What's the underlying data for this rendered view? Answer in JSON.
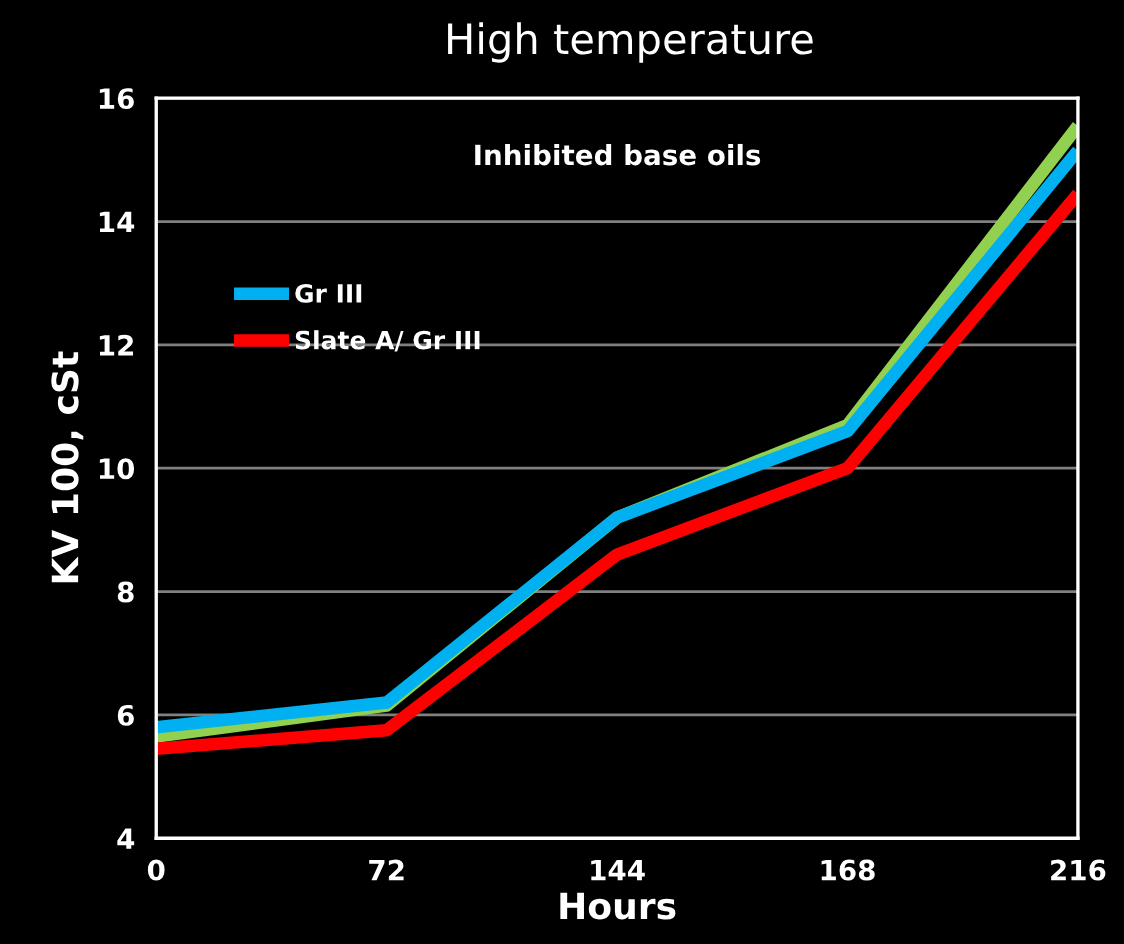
{
  "chart_data": {
    "type": "line",
    "title": "High temperature",
    "subtitle": "Inhibited base oils",
    "xlabel": "Hours",
    "ylabel": "KV 100, cSt",
    "categories": [
      "0",
      "72",
      "144",
      "168",
      "216"
    ],
    "series": [
      {
        "color": "#92d050",
        "values": [
          5.65,
          6.15,
          9.2,
          10.7,
          15.55
        ]
      },
      {
        "name": "Gr III",
        "color": "#00b0f0",
        "values": [
          5.8,
          6.2,
          9.2,
          10.6,
          15.15
        ]
      },
      {
        "name": "Slate A/ Gr III",
        "color": "#ff0000",
        "values": [
          5.45,
          5.75,
          8.6,
          10.0,
          14.45
        ]
      }
    ],
    "ylim": [
      4,
      16
    ],
    "yticks": [
      4,
      6,
      8,
      10,
      12,
      14,
      16
    ],
    "grid": "y",
    "legend": "top left",
    "marker": "none",
    "line_style": "solid"
  }
}
